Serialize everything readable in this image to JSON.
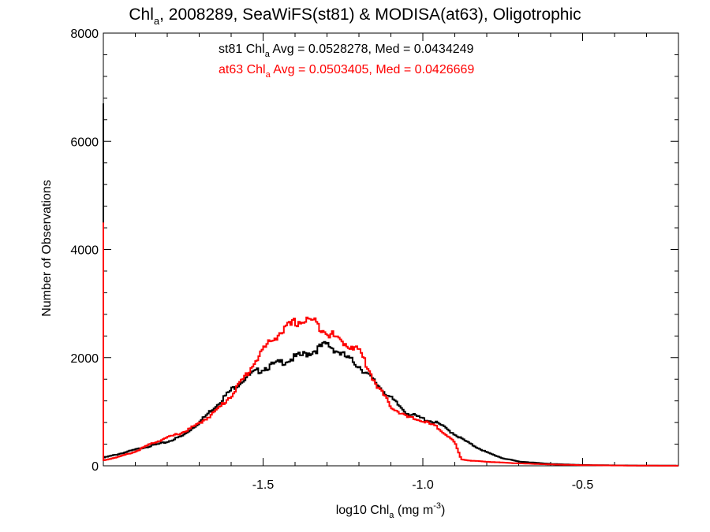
{
  "chart_data": {
    "type": "line",
    "title": {
      "prefix": "Chl",
      "sub": "a",
      "suffix": ", 2008289, SeaWiFS(st81) & MODISA(at63), Oligotrophic"
    },
    "xlabel": {
      "prefix": "log10 Chl",
      "sub": "a",
      "unit": " (mg m",
      "sup": "-3",
      "close": ")"
    },
    "ylabel": "Number of Observations",
    "xlim": [
      -2.0,
      -0.2
    ],
    "ylim": [
      0,
      8000
    ],
    "xticks": [
      -1.5,
      -1.0,
      -0.5
    ],
    "xtick_labels": [
      "-1.5",
      "-1.0",
      "-0.5"
    ],
    "yticks": [
      0,
      2000,
      4000,
      6000,
      8000
    ],
    "ytick_labels": [
      "0",
      "2000",
      "4000",
      "6000",
      "8000"
    ],
    "annotations": [
      {
        "prefix": "st81 Chl",
        "sub": "a",
        "suffix": " Avg = 0.0528278, Med = 0.0434249",
        "color": "#000000"
      },
      {
        "prefix": "at63 Chl",
        "sub": "a",
        "suffix": " Avg = 0.0503405, Med = 0.0426669",
        "color": "#ff0000"
      }
    ],
    "series": [
      {
        "id": "st81",
        "color": "#000000",
        "spike": 6700,
        "points": [
          [
            -2.0,
            150
          ],
          [
            -1.95,
            220
          ],
          [
            -1.9,
            300
          ],
          [
            -1.85,
            370
          ],
          [
            -1.8,
            440
          ],
          [
            -1.75,
            560
          ],
          [
            -1.7,
            800
          ],
          [
            -1.65,
            1100
          ],
          [
            -1.6,
            1400
          ],
          [
            -1.55,
            1650
          ],
          [
            -1.5,
            1800
          ],
          [
            -1.45,
            1900
          ],
          [
            -1.4,
            2000
          ],
          [
            -1.35,
            2100
          ],
          [
            -1.3,
            2250
          ],
          [
            -1.25,
            2050
          ],
          [
            -1.2,
            1850
          ],
          [
            -1.15,
            1550
          ],
          [
            -1.1,
            1250
          ],
          [
            -1.05,
            980
          ],
          [
            -1.0,
            870
          ],
          [
            -0.95,
            780
          ],
          [
            -0.9,
            580
          ],
          [
            -0.85,
            400
          ],
          [
            -0.8,
            250
          ],
          [
            -0.75,
            140
          ],
          [
            -0.7,
            80
          ],
          [
            -0.6,
            35
          ],
          [
            -0.5,
            15
          ],
          [
            -0.4,
            8
          ],
          [
            -0.3,
            4
          ],
          [
            -0.2,
            2
          ]
        ]
      },
      {
        "id": "at63",
        "color": "#ff0000",
        "spike": 4500,
        "points": [
          [
            -2.0,
            100
          ],
          [
            -1.95,
            170
          ],
          [
            -1.9,
            260
          ],
          [
            -1.85,
            410
          ],
          [
            -1.8,
            520
          ],
          [
            -1.75,
            620
          ],
          [
            -1.7,
            780
          ],
          [
            -1.65,
            1000
          ],
          [
            -1.6,
            1300
          ],
          [
            -1.55,
            1700
          ],
          [
            -1.5,
            2150
          ],
          [
            -1.45,
            2450
          ],
          [
            -1.4,
            2650
          ],
          [
            -1.35,
            2700
          ],
          [
            -1.3,
            2480
          ],
          [
            -1.25,
            2280
          ],
          [
            -1.2,
            2150
          ],
          [
            -1.15,
            1550
          ],
          [
            -1.1,
            1100
          ],
          [
            -1.05,
            900
          ],
          [
            -1.0,
            830
          ],
          [
            -0.95,
            700
          ],
          [
            -0.9,
            430
          ],
          [
            -0.88,
            120
          ],
          [
            -0.85,
            95
          ],
          [
            -0.8,
            75
          ],
          [
            -0.7,
            45
          ],
          [
            -0.6,
            25
          ],
          [
            -0.5,
            12
          ],
          [
            -0.4,
            6
          ],
          [
            -0.3,
            3
          ],
          [
            -0.2,
            1
          ]
        ]
      }
    ]
  }
}
